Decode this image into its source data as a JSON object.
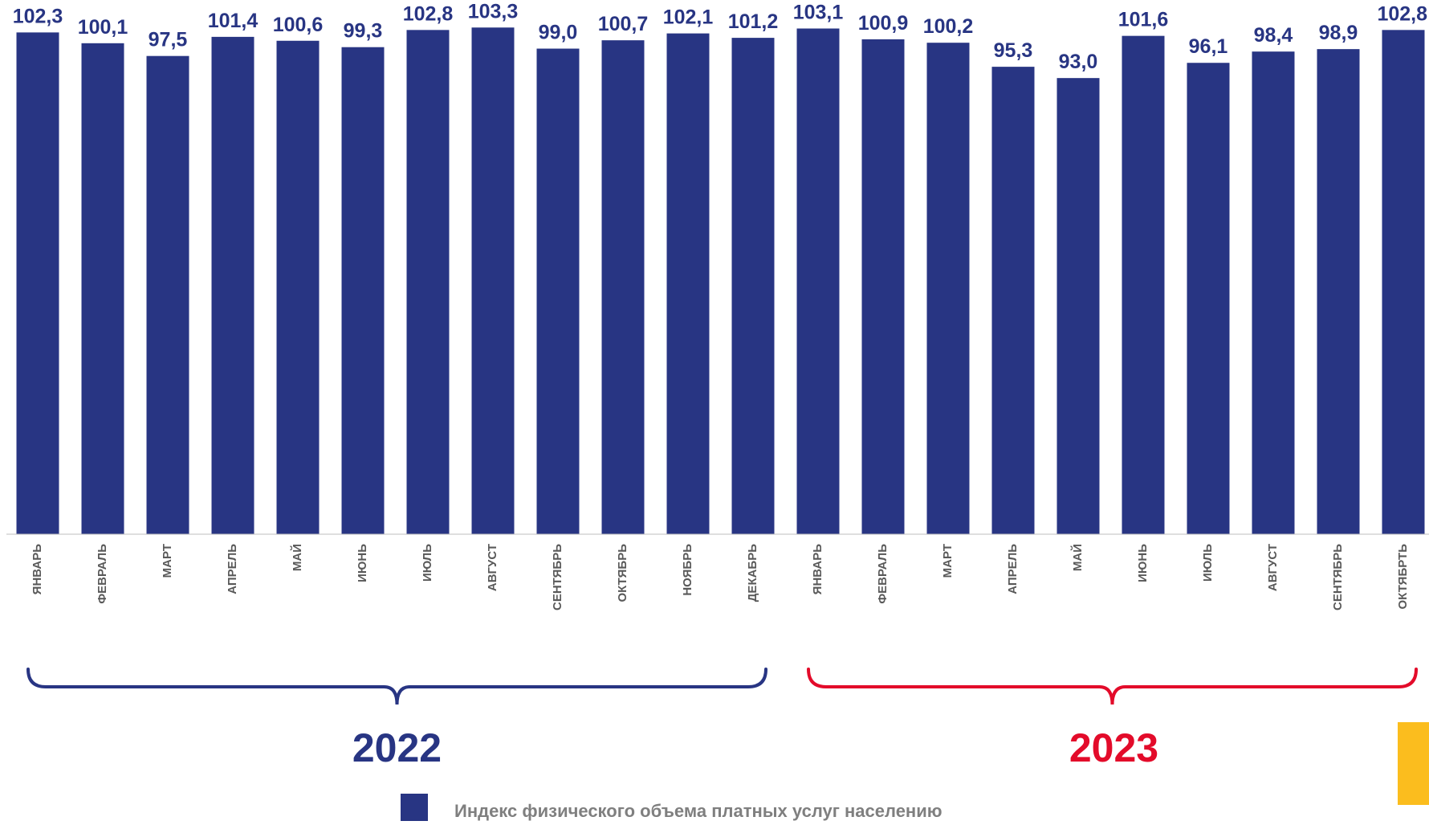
{
  "chart_data": {
    "type": "bar",
    "categories": [
      "ЯНВАРЬ",
      "ФЕВРАЛЬ",
      "МАРТ",
      "АПРЕЛЬ",
      "МАЙ",
      "ИЮНЬ",
      "ИЮЛЬ",
      "АВГУСТ",
      "СЕНТЯБРЬ",
      "ОКТЯБРЬ",
      "НОЯБРЬ",
      "ДЕКАБРЬ",
      "ЯНВАРЬ",
      "ФЕВРАЛЬ",
      "МАРТ",
      "АПРЕЛЬ",
      "МАЙ",
      "ИЮНЬ",
      "ИЮЛЬ",
      "АВГУСТ",
      "СЕНТЯБРЬ",
      "ОКТЯБРТЬ"
    ],
    "values": [
      102.3,
      100.1,
      97.5,
      101.4,
      100.6,
      99.3,
      102.8,
      103.3,
      99.0,
      100.7,
      102.1,
      101.2,
      103.1,
      100.9,
      100.2,
      95.3,
      93.0,
      101.6,
      96.1,
      98.4,
      98.9,
      102.8
    ],
    "value_labels": [
      "102,3",
      "100,1",
      "97,5",
      "101,4",
      "100,6",
      "99,3",
      "102,8",
      "103,3",
      "99,0",
      "100,7",
      "102,1",
      "101,2",
      "103,1",
      "100,9",
      "100,2",
      "95,3",
      "93,0",
      "101,6",
      "96,1",
      "98,4",
      "98,9",
      "102,8"
    ],
    "series": [
      {
        "name": "Индекс физического объема платных услуг населению",
        "color": "#283583"
      }
    ],
    "year_groups": [
      {
        "label": "2022",
        "start": 0,
        "end": 11,
        "color": "#283583"
      },
      {
        "label": "2023",
        "start": 12,
        "end": 21,
        "color": "#e30b2a"
      }
    ],
    "title": "",
    "xlabel": "",
    "ylabel": "",
    "ylim": [
      0,
      104
    ],
    "grid": false,
    "legend_position": "bottom"
  },
  "colors": {
    "bar": "#283583",
    "value_label": "#283583",
    "tick_label": "#595959",
    "legend_text": "#7f7f7f",
    "axis_line": "#bfbfbf",
    "accent_corner": "#fbbd1e"
  }
}
